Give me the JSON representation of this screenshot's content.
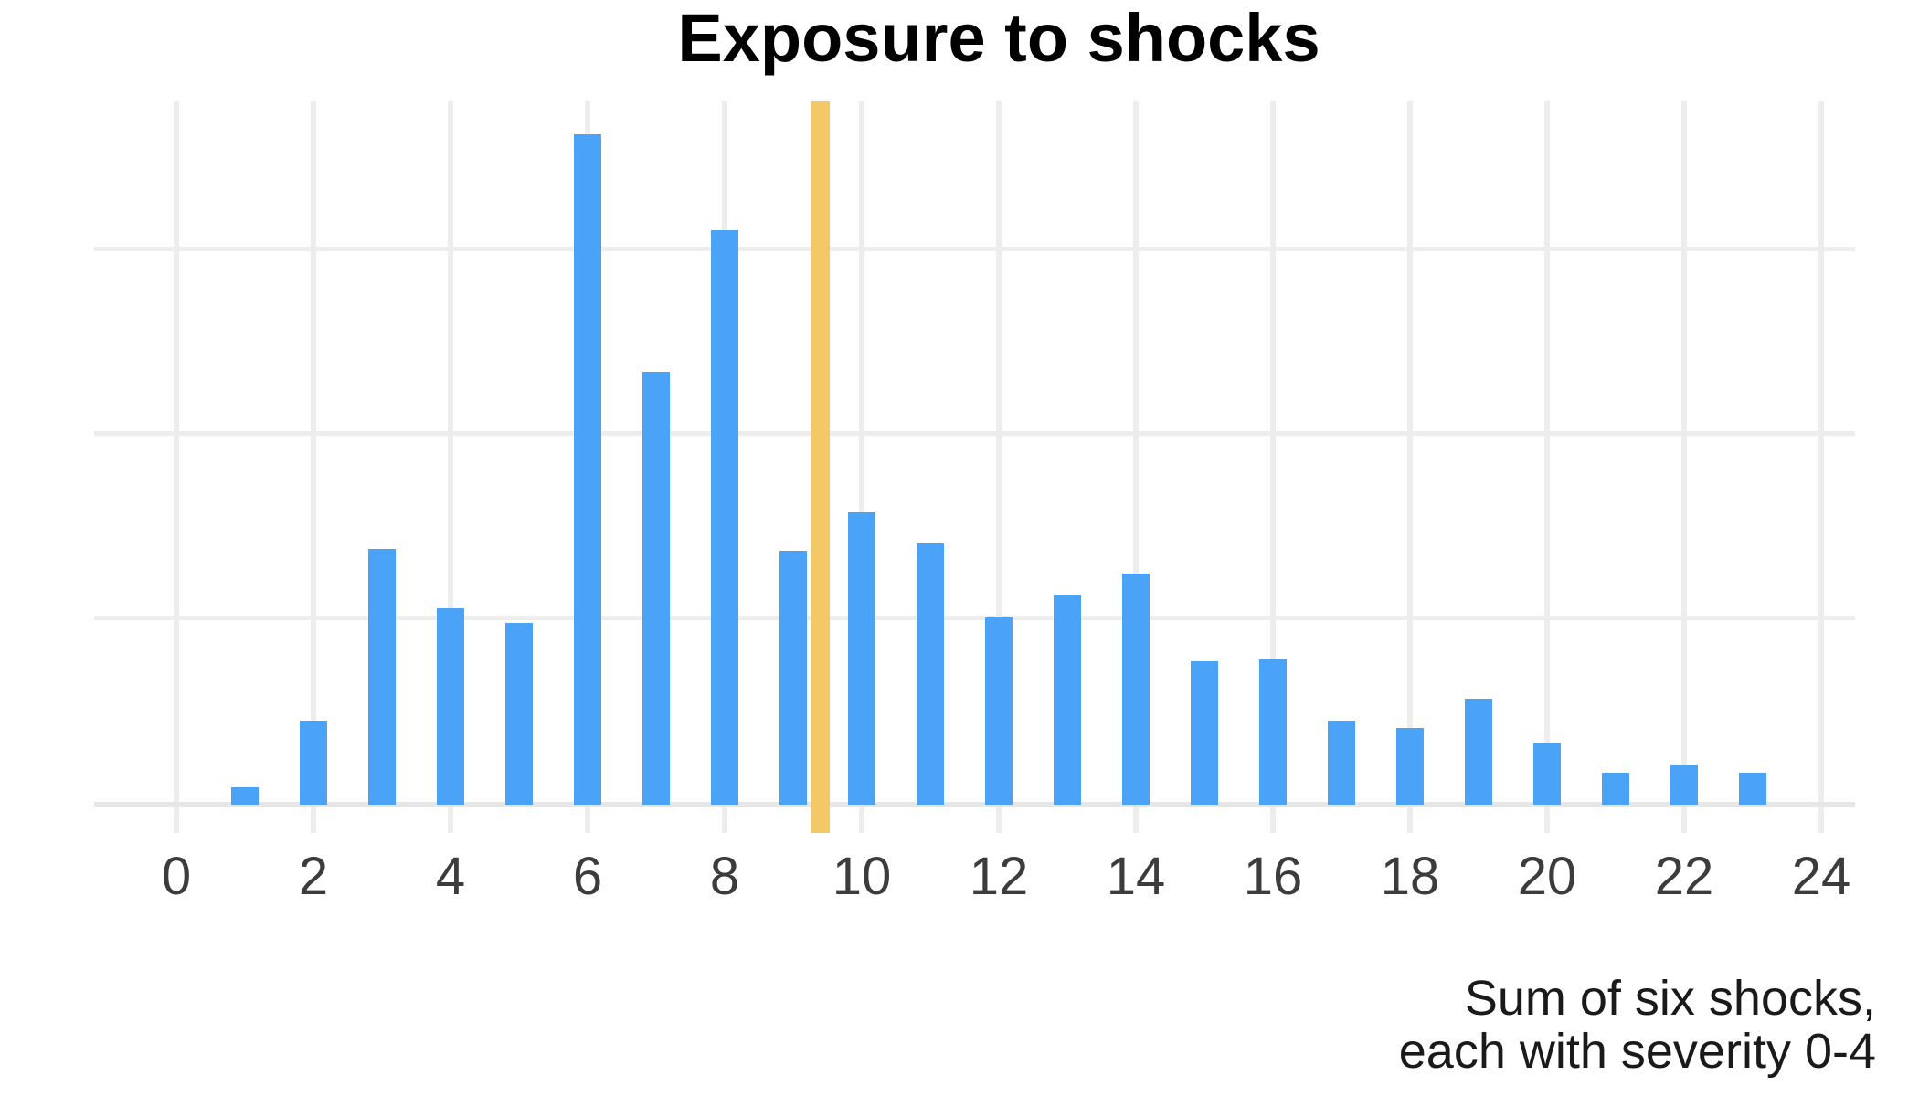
{
  "chart_data": {
    "type": "bar",
    "title": "Exposure to shocks",
    "caption_lines": [
      "Sum of six shocks,",
      "each with severity 0-4"
    ],
    "xlabel": "",
    "ylabel": "",
    "x": [
      1,
      2,
      3,
      4,
      5,
      6,
      7,
      8,
      9,
      10,
      11,
      12,
      13,
      14,
      15,
      16,
      17,
      18,
      19,
      20,
      21,
      22,
      23
    ],
    "values": [
      0.08,
      0.44,
      1.37,
      1.05,
      0.97,
      3.62,
      2.33,
      3.1,
      1.36,
      1.57,
      1.4,
      1.0,
      1.12,
      1.24,
      0.76,
      0.77,
      0.44,
      0.4,
      0.56,
      0.32,
      0.16,
      0.2,
      0.16
    ],
    "x_tick_labels": [
      "0",
      "2",
      "4",
      "6",
      "8",
      "10",
      "12",
      "14",
      "16",
      "18",
      "20",
      "22",
      "24"
    ],
    "x_ticks": [
      0,
      2,
      4,
      6,
      8,
      10,
      12,
      14,
      16,
      18,
      20,
      22,
      24
    ],
    "xlim": [
      -1.2,
      24.5
    ],
    "ylim": [
      -0.17,
      3.8
    ],
    "y_gridlines_unlabeled": [
      1,
      2,
      3
    ],
    "marker_line": {
      "x": 9.4,
      "color": "#F2C966",
      "meaning": "vertical reference line"
    },
    "bar_color": "#4BA3F8",
    "grid": true,
    "legend": false,
    "note": "y axis has no tick labels; gridline spacing treated as 1 unit"
  }
}
